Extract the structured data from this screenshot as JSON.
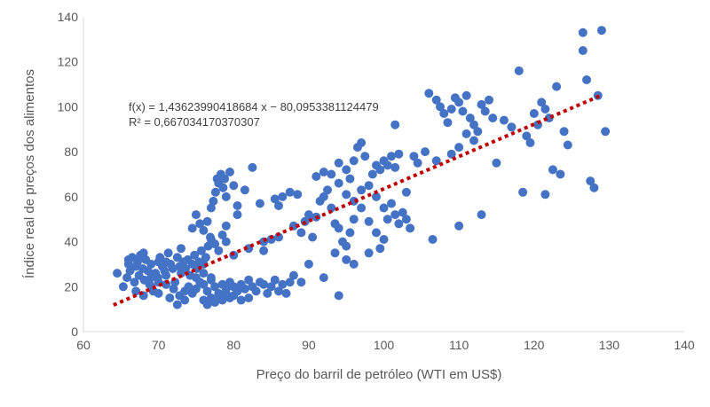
{
  "chart_data": {
    "type": "scatter",
    "xlabel": "Preço do barril de petróleo (WTI em US$)",
    "ylabel": "Índice real de preços dos alimentos",
    "xlim": [
      60,
      140
    ],
    "ylim": [
      0,
      140
    ],
    "x_ticks": [
      "60",
      "70",
      "80",
      "90",
      "100",
      "110",
      "120",
      "130",
      "140"
    ],
    "y_ticks": [
      "0",
      "20",
      "40",
      "60",
      "80",
      "100",
      "120",
      "140"
    ],
    "grid": false,
    "legend": "none",
    "point_color": "#4472C4",
    "trendline": {
      "color": "#C00000",
      "style": "dotted",
      "slope": 1.43623990418684,
      "intercept": -80.0953381124479,
      "x_range": [
        64,
        129
      ],
      "equation_label": "f(x) = 1,43623990418684 x − 80,0953381124479",
      "r2_label": "R² = 0,667034170370307"
    },
    "points": [
      [
        64.5,
        26
      ],
      [
        65.3,
        20
      ],
      [
        65.8,
        24
      ],
      [
        66.0,
        30
      ],
      [
        66.2,
        27
      ],
      [
        66.5,
        33
      ],
      [
        66.8,
        22
      ],
      [
        67.0,
        29
      ],
      [
        67.2,
        31
      ],
      [
        67.4,
        25
      ],
      [
        67.6,
        34
      ],
      [
        67.9,
        28
      ],
      [
        68.1,
        23
      ],
      [
        68.3,
        32
      ],
      [
        68.6,
        27
      ],
      [
        68.8,
        21
      ],
      [
        69.0,
        30
      ],
      [
        69.3,
        18
      ],
      [
        69.6,
        26
      ],
      [
        69.9,
        24
      ],
      [
        70.2,
        33
      ],
      [
        70.5,
        29
      ],
      [
        70.8,
        27
      ],
      [
        71.0,
        31
      ],
      [
        71.3,
        35
      ],
      [
        71.6,
        30
      ],
      [
        71.9,
        28
      ],
      [
        72.2,
        22
      ],
      [
        72.5,
        33
      ],
      [
        72.8,
        29
      ],
      [
        73.0,
        26
      ],
      [
        73.3,
        31
      ],
      [
        73.6,
        28
      ],
      [
        73.9,
        32
      ],
      [
        74.2,
        25
      ],
      [
        74.5,
        30
      ],
      [
        74.8,
        34
      ],
      [
        75.1,
        28
      ],
      [
        75.4,
        31
      ],
      [
        75.7,
        36
      ],
      [
        76.0,
        30
      ],
      [
        76.3,
        33
      ],
      [
        76.6,
        38
      ],
      [
        76.9,
        42
      ],
      [
        67.0,
        18
      ],
      [
        68.0,
        16
      ],
      [
        69.0,
        20
      ],
      [
        70.0,
        17
      ],
      [
        71.0,
        21
      ],
      [
        72.0,
        19
      ],
      [
        72.8,
        16
      ],
      [
        73.5,
        18
      ],
      [
        74.0,
        20
      ],
      [
        74.5,
        17
      ],
      [
        75.0,
        19
      ],
      [
        75.5,
        22
      ],
      [
        76.0,
        21
      ],
      [
        76.5,
        18
      ],
      [
        77.0,
        23
      ],
      [
        77.5,
        20
      ],
      [
        78.0,
        17
      ],
      [
        78.5,
        21
      ],
      [
        79.0,
        19
      ],
      [
        79.5,
        22
      ],
      [
        80.0,
        20
      ],
      [
        80.5,
        18
      ],
      [
        81.0,
        21
      ],
      [
        81.5,
        19
      ],
      [
        82.0,
        23
      ],
      [
        82.5,
        20
      ],
      [
        83.0,
        18
      ],
      [
        83.5,
        22
      ],
      [
        84.0,
        21
      ],
      [
        84.5,
        17
      ],
      [
        85.0,
        20
      ],
      [
        85.5,
        23
      ],
      [
        86.0,
        18
      ],
      [
        86.5,
        21
      ],
      [
        87.0,
        17
      ],
      [
        87.5,
        22
      ],
      [
        76.0,
        14
      ],
      [
        76.5,
        12
      ],
      [
        77.0,
        15
      ],
      [
        77.5,
        13
      ],
      [
        78.0,
        16
      ],
      [
        78.5,
        14
      ],
      [
        79.0,
        17
      ],
      [
        79.5,
        15
      ],
      [
        80.0,
        16
      ],
      [
        81.0,
        14
      ],
      [
        82.0,
        15
      ],
      [
        71.5,
        15
      ],
      [
        72.5,
        12
      ],
      [
        73.5,
        14
      ],
      [
        69.0,
        24
      ],
      [
        70.0,
        22
      ],
      [
        71.0,
        25
      ],
      [
        75.0,
        24
      ],
      [
        76.0,
        26
      ],
      [
        77.0,
        24
      ],
      [
        74.5,
        46
      ],
      [
        75.0,
        52
      ],
      [
        75.5,
        48
      ],
      [
        76.0,
        45
      ],
      [
        76.5,
        49
      ],
      [
        77.0,
        55
      ],
      [
        77.3,
        58
      ],
      [
        77.6,
        62
      ],
      [
        78.0,
        66
      ],
      [
        78.3,
        70
      ],
      [
        78.6,
        64
      ],
      [
        79.0,
        60
      ],
      [
        77.8,
        68
      ],
      [
        78.8,
        68
      ],
      [
        79.5,
        71
      ],
      [
        80.0,
        65
      ],
      [
        80.5,
        56
      ],
      [
        81.5,
        63
      ],
      [
        82.5,
        73
      ],
      [
        77.0,
        41
      ],
      [
        77.5,
        39
      ],
      [
        78.0,
        36
      ],
      [
        78.5,
        43
      ],
      [
        79.0,
        40
      ],
      [
        80.0,
        34
      ],
      [
        82.0,
        37
      ],
      [
        84.0,
        36
      ],
      [
        85.0,
        41
      ],
      [
        83.5,
        57
      ],
      [
        85.5,
        59
      ],
      [
        86.5,
        60
      ],
      [
        87.5,
        62
      ],
      [
        86.0,
        56
      ],
      [
        88.0,
        47
      ],
      [
        89.0,
        44
      ],
      [
        89.5,
        49
      ],
      [
        90.0,
        52
      ],
      [
        90.5,
        42
      ],
      [
        91.0,
        51
      ],
      [
        91.5,
        58
      ],
      [
        92.0,
        60
      ],
      [
        92.5,
        63
      ],
      [
        93.0,
        55
      ],
      [
        93.5,
        48
      ],
      [
        94.0,
        46
      ],
      [
        94.5,
        40
      ],
      [
        95.0,
        38
      ],
      [
        95.5,
        44
      ],
      [
        96.0,
        50
      ],
      [
        91.0,
        69
      ],
      [
        92.0,
        71
      ],
      [
        93.0,
        70
      ],
      [
        94.0,
        75
      ],
      [
        95.0,
        72
      ],
      [
        95.5,
        68
      ],
      [
        96.0,
        76
      ],
      [
        96.5,
        82
      ],
      [
        97.0,
        84
      ],
      [
        97.5,
        78
      ],
      [
        94.0,
        66
      ],
      [
        95.0,
        61
      ],
      [
        96.0,
        58
      ],
      [
        97.0,
        63
      ],
      [
        98.0,
        65
      ],
      [
        98.5,
        70
      ],
      [
        99.0,
        74
      ],
      [
        99.5,
        72
      ],
      [
        100.0,
        76
      ],
      [
        100.5,
        74
      ],
      [
        101.0,
        78
      ],
      [
        101.5,
        73
      ],
      [
        102.0,
        79
      ],
      [
        99.0,
        60
      ],
      [
        100.0,
        55
      ],
      [
        100.5,
        50
      ],
      [
        101.0,
        57
      ],
      [
        101.5,
        52
      ],
      [
        102.0,
        48
      ],
      [
        102.5,
        53
      ],
      [
        103.0,
        50
      ],
      [
        103.5,
        46
      ],
      [
        97.0,
        55
      ],
      [
        98.0,
        49
      ],
      [
        99.0,
        44
      ],
      [
        100.0,
        41
      ],
      [
        96.0,
        30
      ],
      [
        94.0,
        16
      ],
      [
        92.0,
        24
      ],
      [
        90.0,
        30
      ],
      [
        89.0,
        22
      ],
      [
        88.0,
        25
      ],
      [
        101.5,
        92
      ],
      [
        103.0,
        62
      ],
      [
        104.0,
        78
      ],
      [
        104.5,
        75
      ],
      [
        105.5,
        80
      ],
      [
        106.0,
        106
      ],
      [
        107.0,
        103
      ],
      [
        107.5,
        100
      ],
      [
        108.0,
        97
      ],
      [
        108.5,
        93
      ],
      [
        109.0,
        99
      ],
      [
        109.5,
        104
      ],
      [
        110.0,
        102
      ],
      [
        110.5,
        98
      ],
      [
        111.0,
        105
      ],
      [
        111.5,
        95
      ],
      [
        112.0,
        92
      ],
      [
        112.5,
        89
      ],
      [
        113.0,
        101
      ],
      [
        113.5,
        98
      ],
      [
        114.0,
        103
      ],
      [
        114.5,
        95
      ],
      [
        112.0,
        85
      ],
      [
        111.0,
        88
      ],
      [
        110.0,
        82
      ],
      [
        109.0,
        79
      ],
      [
        107.0,
        76
      ],
      [
        106.5,
        41
      ],
      [
        110.0,
        47
      ],
      [
        113.0,
        52
      ],
      [
        115.0,
        75
      ],
      [
        116.0,
        94
      ],
      [
        117.0,
        91
      ],
      [
        118.0,
        116
      ],
      [
        118.5,
        62
      ],
      [
        119.0,
        87
      ],
      [
        119.5,
        84
      ],
      [
        120.0,
        97
      ],
      [
        120.5,
        92
      ],
      [
        121.0,
        102
      ],
      [
        121.5,
        99
      ],
      [
        122.0,
        95
      ],
      [
        123.0,
        109
      ],
      [
        124.0,
        89
      ],
      [
        124.5,
        83
      ],
      [
        122.5,
        72
      ],
      [
        123.5,
        70
      ],
      [
        121.5,
        61
      ],
      [
        126.5,
        133
      ],
      [
        126.5,
        125
      ],
      [
        127.0,
        112
      ],
      [
        127.5,
        67
      ],
      [
        128.0,
        64
      ],
      [
        129.0,
        134
      ],
      [
        129.5,
        89
      ],
      [
        128.5,
        105
      ],
      [
        93.5,
        35
      ],
      [
        95.0,
        32
      ],
      [
        98.0,
        35
      ],
      [
        99.5,
        37
      ],
      [
        88.5,
        61
      ],
      [
        86.0,
        42
      ],
      [
        84.0,
        40
      ],
      [
        70.0,
        31
      ],
      [
        68.0,
        35
      ],
      [
        66.0,
        32
      ],
      [
        73.0,
        37
      ],
      [
        79.0,
        47
      ],
      [
        80.5,
        52
      ]
    ]
  }
}
